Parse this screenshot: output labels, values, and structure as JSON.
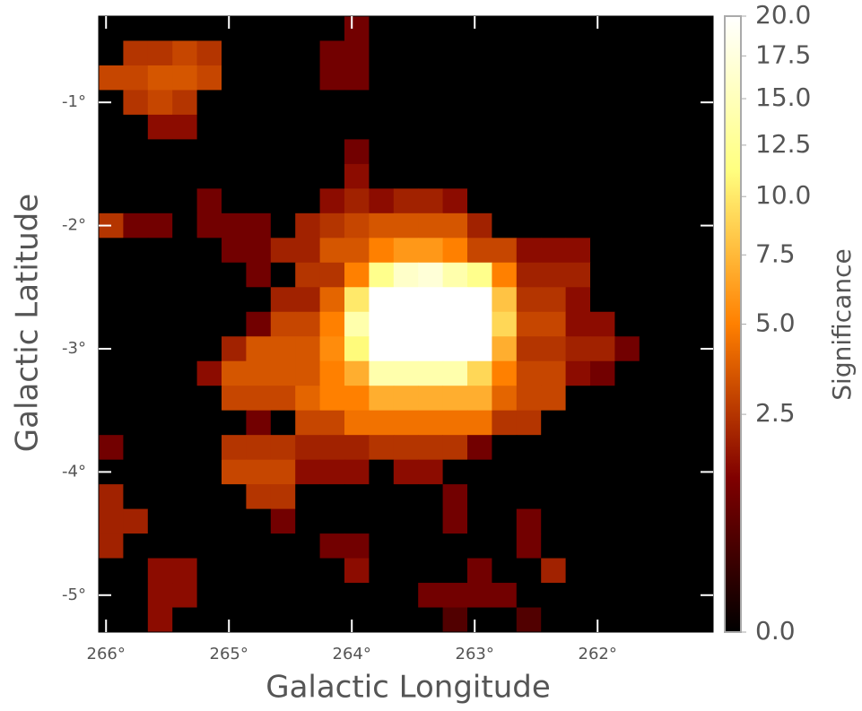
{
  "chart_data": {
    "type": "heatmap",
    "xlabel": "Galactic Longitude",
    "ylabel": "Galactic Latitude",
    "xlim": [
      266.06,
      261.06
    ],
    "ylim": [
      -5.3,
      -0.3
    ],
    "xticks": [
      {
        "value": 266,
        "label": "266°"
      },
      {
        "value": 265,
        "label": "265°"
      },
      {
        "value": 264,
        "label": "264°"
      },
      {
        "value": 263,
        "label": "263°"
      },
      {
        "value": 262,
        "label": "262°"
      }
    ],
    "yticks": [
      {
        "value": -1,
        "label": "-1°"
      },
      {
        "value": -2,
        "label": "-2°"
      },
      {
        "value": -3,
        "label": "-3°"
      },
      {
        "value": -4,
        "label": "-4°"
      },
      {
        "value": -5,
        "label": "-5°"
      }
    ],
    "colormap": "afmhot",
    "colorbar": {
      "label": "Significance",
      "lim": [
        0,
        20
      ],
      "stretch": "sqrt",
      "ticks": [
        {
          "value": 0,
          "label": "0.0"
        },
        {
          "value": 2.5,
          "label": "2.5"
        },
        {
          "value": 5,
          "label": "5.0"
        },
        {
          "value": 7.5,
          "label": "7.5"
        },
        {
          "value": 10,
          "label": "10.0"
        },
        {
          "value": 12.5,
          "label": "12.5"
        },
        {
          "value": 15,
          "label": "15.0"
        },
        {
          "value": 17.5,
          "label": "17.5"
        },
        {
          "value": 20,
          "label": "20.0"
        }
      ]
    },
    "values": [
      [
        0,
        0,
        0,
        0,
        0,
        0,
        0,
        0,
        0,
        0,
        1,
        0,
        0,
        0,
        0,
        0,
        0,
        0,
        0,
        0,
        0,
        0,
        0,
        0,
        0
      ],
      [
        0,
        2.5,
        2.5,
        3,
        2.5,
        0,
        0,
        0,
        0,
        1,
        1,
        0,
        0,
        0,
        0,
        0,
        0,
        0,
        0,
        0,
        0,
        0,
        0,
        0,
        0
      ],
      [
        3,
        3,
        3.5,
        3.5,
        3,
        0,
        0,
        0,
        0,
        1,
        1,
        0,
        0,
        0,
        0,
        0,
        0,
        0,
        0,
        0,
        0,
        0,
        0,
        0,
        0
      ],
      [
        0,
        2.5,
        3,
        2.5,
        0,
        0,
        0,
        0,
        0,
        0,
        0,
        0,
        0,
        0,
        0,
        0,
        0,
        0,
        0,
        0,
        0,
        0,
        0,
        0,
        0
      ],
      [
        0,
        0,
        1.5,
        1.5,
        0,
        0,
        0,
        0,
        0,
        0,
        0,
        0,
        0,
        0,
        0,
        0,
        0,
        0,
        0,
        0,
        0,
        0,
        0,
        0,
        0
      ],
      [
        0,
        0,
        0,
        0,
        0,
        0,
        0,
        0,
        0,
        0,
        1,
        0,
        0,
        0,
        0,
        0,
        0,
        0,
        0,
        0,
        0,
        0,
        0,
        0,
        0
      ],
      [
        0,
        0,
        0,
        0,
        0,
        0,
        0,
        0,
        0,
        0,
        1.5,
        0,
        0,
        0,
        0,
        0,
        0,
        0,
        0,
        0,
        0,
        0,
        0,
        0,
        0
      ],
      [
        0,
        0,
        0,
        0,
        1,
        0,
        0,
        0,
        0,
        1.5,
        2,
        1.5,
        2,
        2,
        1.5,
        0,
        0,
        0,
        0,
        0,
        0,
        0,
        0,
        0,
        0
      ],
      [
        2.5,
        1,
        1,
        0,
        1,
        1,
        1,
        0,
        2,
        2.5,
        3,
        3.5,
        3.5,
        3.5,
        3.5,
        2,
        0,
        0,
        0,
        0,
        0,
        0,
        0,
        0,
        0
      ],
      [
        0,
        0,
        0,
        0,
        0,
        1,
        1,
        2,
        2,
        3.5,
        3.5,
        5,
        6,
        6,
        5,
        3,
        3,
        1.5,
        1.5,
        1.5,
        0,
        0,
        0,
        0,
        0
      ],
      [
        0,
        0,
        0,
        0,
        0,
        0,
        1,
        0,
        2.5,
        2.5,
        5,
        12,
        16,
        17,
        14,
        12,
        5,
        2,
        2,
        2,
        0,
        0,
        0,
        0,
        0
      ],
      [
        0,
        0,
        0,
        0,
        0,
        0,
        0,
        2,
        2,
        4,
        10,
        20,
        20,
        20,
        20,
        20,
        8,
        2.5,
        2.5,
        1.5,
        0,
        0,
        0,
        0,
        0
      ],
      [
        0,
        0,
        0,
        0,
        0,
        0,
        1,
        3,
        3,
        5,
        14,
        20,
        20,
        20,
        20,
        20,
        9,
        3,
        3,
        1.5,
        1.5,
        0,
        0,
        0,
        0
      ],
      [
        0,
        0,
        0,
        0,
        0,
        2,
        3.5,
        3.5,
        3.5,
        5.5,
        11,
        20,
        20,
        20,
        20,
        20,
        7,
        2.5,
        2.5,
        2,
        2,
        1,
        0,
        0,
        0
      ],
      [
        0,
        0,
        0,
        0,
        1.5,
        3.5,
        3.5,
        3.5,
        3.5,
        5,
        7,
        14,
        14,
        14,
        14,
        9,
        5,
        3,
        3,
        1.5,
        1,
        0,
        0,
        0,
        0
      ],
      [
        0,
        0,
        0,
        0,
        0,
        3,
        3,
        3,
        4,
        5,
        5,
        7,
        7,
        7,
        7,
        7,
        4,
        3,
        3,
        0,
        0,
        0,
        0,
        0,
        0
      ],
      [
        0,
        0,
        0,
        0,
        0,
        0,
        1,
        0,
        3,
        3,
        4.5,
        4.5,
        4.5,
        4.5,
        4.5,
        4.5,
        2.5,
        2.5,
        0,
        0,
        0,
        0,
        0,
        0,
        0
      ],
      [
        1,
        0,
        0,
        0,
        0,
        2.5,
        2.5,
        2.5,
        2,
        2,
        2,
        2.5,
        2.5,
        2.5,
        2.5,
        1,
        0,
        0,
        0,
        0,
        0,
        0,
        0,
        0,
        0
      ],
      [
        0,
        0,
        0,
        0,
        0,
        3,
        3,
        3,
        1.5,
        1.5,
        1.5,
        0,
        1.5,
        1.5,
        0,
        0,
        0,
        0,
        0,
        0,
        0,
        0,
        0,
        0,
        0
      ],
      [
        2,
        0,
        0,
        0,
        0,
        0,
        2.5,
        2.5,
        0,
        0,
        0,
        0,
        0,
        0,
        1,
        0,
        0,
        0,
        0,
        0,
        0,
        0,
        0,
        0,
        0
      ],
      [
        2,
        2,
        0,
        0,
        0,
        0,
        0,
        1,
        0,
        0,
        0,
        0,
        0,
        0,
        1,
        0,
        0,
        1,
        0,
        0,
        0,
        0,
        0,
        0,
        0
      ],
      [
        2,
        0,
        0,
        0,
        0,
        0,
        0,
        0,
        0,
        1,
        1,
        0,
        0,
        0,
        0,
        0,
        0,
        1,
        0,
        0,
        0,
        0,
        0,
        0,
        0
      ],
      [
        0,
        0,
        1.5,
        1.5,
        0,
        0,
        0,
        0,
        0,
        0,
        1.5,
        0,
        0,
        0,
        0,
        1,
        0,
        0,
        2,
        0,
        0,
        0,
        0,
        0,
        0
      ],
      [
        0,
        0,
        1.5,
        1.5,
        0,
        0,
        0,
        0,
        0,
        0,
        0,
        0,
        0,
        1,
        1,
        1,
        1,
        0,
        0,
        0,
        0,
        0,
        0,
        0,
        0
      ],
      [
        0,
        0,
        1.5,
        0,
        0,
        0,
        0,
        0,
        0,
        0,
        0,
        0,
        0,
        0,
        0.5,
        0,
        0,
        0.5,
        0,
        0,
        0,
        0,
        0,
        0,
        0
      ]
    ]
  }
}
